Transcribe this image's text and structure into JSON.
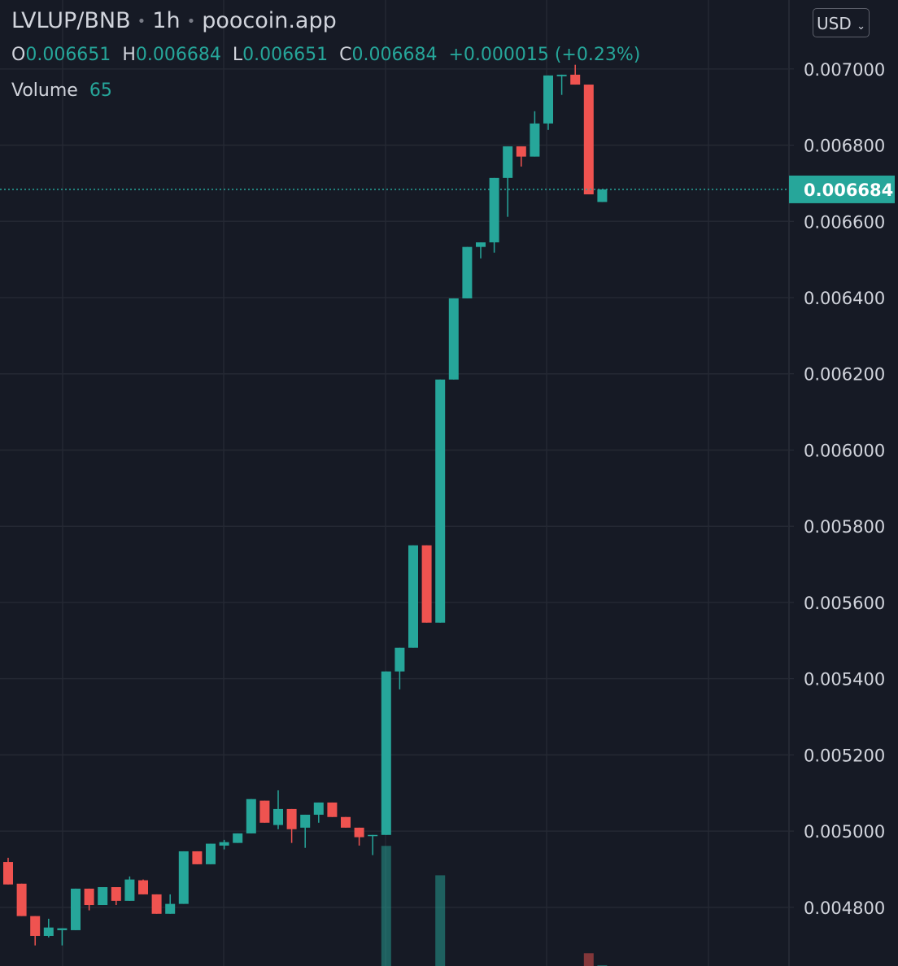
{
  "chart_data": {
    "type": "candlestick",
    "title": "LVLUP/BNB",
    "interval": "1h",
    "source": "poocoin.app",
    "currency": "USD",
    "ohlc_labels": [
      "O",
      "H",
      "L",
      "C"
    ],
    "change": "+0.000015 (+0.23%)",
    "volume_label": "Volume",
    "up_color": "#26a69a",
    "down_color": "#ef5350",
    "grid": true,
    "ylim": [
      0.004646,
      0.007181
    ],
    "yticks": [
      {
        "value": 0.0048,
        "label": "0.004800"
      },
      {
        "value": 0.005,
        "label": "0.005000"
      },
      {
        "value": 0.0052,
        "label": "0.005200"
      },
      {
        "value": 0.0054,
        "label": "0.005400"
      },
      {
        "value": 0.0056,
        "label": "0.005600"
      },
      {
        "value": 0.0058,
        "label": "0.005800"
      },
      {
        "value": 0.006,
        "label": "0.006000"
      },
      {
        "value": 0.0062,
        "label": "0.006200"
      },
      {
        "value": 0.0064,
        "label": "0.006400"
      },
      {
        "value": 0.0066,
        "label": "0.006600"
      },
      {
        "value": 0.0068,
        "label": "0.006800"
      },
      {
        "value": 0.007,
        "label": "0.007000"
      }
    ],
    "open": [
      0.004919,
      0.004862,
      0.004777,
      0.004725,
      0.00474,
      0.00474,
      0.004849,
      0.004806,
      0.004853,
      0.004817,
      0.004871,
      0.004834,
      0.004783,
      0.004809,
      0.004947,
      0.004913,
      0.004962,
      0.004969,
      0.004994,
      0.00508,
      0.005016,
      0.005058,
      0.005009,
      0.005043,
      0.005075,
      0.005037,
      0.005009,
      0.004988,
      0.00499,
      0.005419,
      0.005481,
      0.00575,
      0.005547,
      0.006185,
      0.006398,
      0.006533,
      0.006545,
      0.006714,
      0.006797,
      0.00677,
      0.006857,
      0.006981,
      0.006985,
      0.006959,
      0.006651
    ],
    "high": [
      0.00493,
      0.004862,
      0.004777,
      0.00477,
      0.004745,
      0.004849,
      0.004849,
      0.004853,
      0.004853,
      0.004881,
      0.004873,
      0.004834,
      0.004834,
      0.004947,
      0.004947,
      0.004967,
      0.004977,
      0.004994,
      0.005084,
      0.00508,
      0.005107,
      0.005058,
      0.005043,
      0.005075,
      0.005075,
      0.005037,
      0.005009,
      0.00499,
      0.005419,
      0.005481,
      0.00575,
      0.00575,
      0.006185,
      0.006398,
      0.006533,
      0.006545,
      0.006714,
      0.006797,
      0.006797,
      0.006889,
      0.006983,
      0.006985,
      0.007011,
      0.006959,
      0.006684
    ],
    "low": [
      0.00486,
      0.004777,
      0.0047,
      0.004721,
      0.0047,
      0.00474,
      0.004792,
      0.004806,
      0.004806,
      0.004817,
      0.004834,
      0.004783,
      0.004783,
      0.004809,
      0.004913,
      0.004913,
      0.004952,
      0.004969,
      0.004994,
      0.005022,
      0.005005,
      0.004969,
      0.004956,
      0.005022,
      0.005037,
      0.005009,
      0.004962,
      0.004937,
      0.00499,
      0.005372,
      0.005481,
      0.005547,
      0.005547,
      0.006185,
      0.006398,
      0.006503,
      0.006518,
      0.006612,
      0.006744,
      0.00677,
      0.00684,
      0.006932,
      0.006959,
      0.006671,
      0.006651
    ],
    "close": [
      0.00486,
      0.004777,
      0.004725,
      0.004747,
      0.004745,
      0.004849,
      0.004806,
      0.004853,
      0.004817,
      0.004873,
      0.004834,
      0.004783,
      0.004809,
      0.004947,
      0.004913,
      0.004967,
      0.004971,
      0.004994,
      0.005084,
      0.005022,
      0.005058,
      0.005005,
      0.005043,
      0.005075,
      0.005037,
      0.005009,
      0.004984,
      0.00499,
      0.005419,
      0.005481,
      0.00575,
      0.005547,
      0.006185,
      0.006398,
      0.006533,
      0.006545,
      0.006714,
      0.006797,
      0.00677,
      0.006857,
      0.006983,
      0.006985,
      0.006959,
      0.006671,
      0.006684
    ],
    "volume": [
      null,
      null,
      null,
      null,
      null,
      null,
      null,
      null,
      null,
      null,
      null,
      null,
      null,
      null,
      null,
      null,
      null,
      null,
      null,
      null,
      null,
      null,
      null,
      null,
      null,
      null,
      null,
      null,
      9400,
      null,
      null,
      null,
      7100,
      null,
      null,
      null,
      null,
      null,
      null,
      null,
      null,
      null,
      null,
      1000,
      65
    ],
    "volume_ylim": [
      0,
      18900
    ]
  }
}
